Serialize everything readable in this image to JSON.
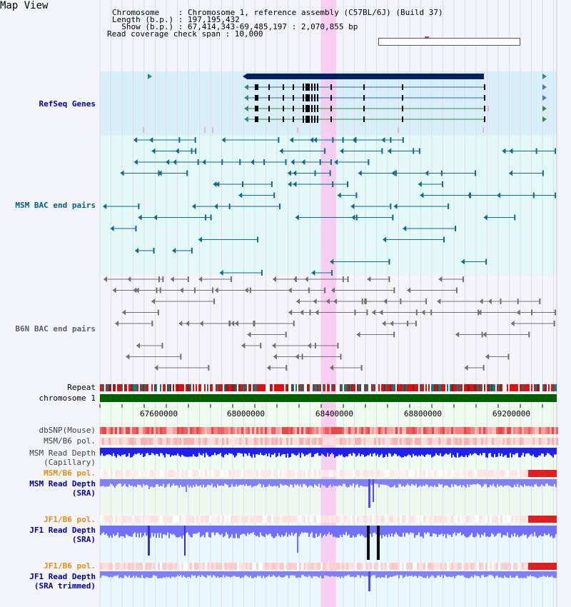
{
  "view": {
    "title": "Map View",
    "info_lines": [
      "Chromosome    : Chromosome 1, reference assembly (C57BL/6J) (Build 37)",
      "Length (b.p.) : 197,195,432",
      "  Show (b.p.) : 67,414,343-69,485,197 : 2,070,855 bp",
      "Read coverage check span : 10,000"
    ]
  },
  "tracks": {
    "refseq": "RefSeq Genes",
    "msm_bac": "MSM BAC end pairs",
    "b6n_bac": "B6N BAC end pairs",
    "repeat": "Repeat",
    "chromosome": "chromosome 1",
    "dbsnp": "dbSNP(Mouse)",
    "msm_b6_pol_1": "MSM/B6 pol.",
    "msm_read_depth_cap_1": "MSM Read Depth",
    "msm_read_depth_cap_2": "(Capillary)",
    "msm_b6_pol_2": "MSM/B6 pol.",
    "msm_read_depth_sra_1": "MSM Read Depth",
    "msm_read_depth_sra_2": "(SRA)",
    "jf1_b6_pol_1": "JF1/B6 pol.",
    "jf1_read_depth_sra_1": "JF1 Read Depth",
    "jf1_read_depth_sra_2": "(SRA)",
    "jf1_b6_pol_2": "JF1/B6 pol.",
    "jf1_read_depth_trim_1": "JF1 Read Depth",
    "jf1_read_depth_trim_2": "(SRA trimmed)"
  },
  "axis": {
    "ticks": [
      "67600000",
      "68000000",
      "68400000",
      "68800000",
      "69200000"
    ]
  },
  "colors": {
    "refseq_label": "#00009c",
    "msm_bac_label": "#006080",
    "b6n_bac_label": "#606060",
    "pol_label": "#e09000",
    "depth_label": "#00009c",
    "highlight": "#f8c8f0",
    "chromosome_bar": "#006000",
    "depth_bar": "#2020f0",
    "depth_light": "#8080f8"
  }
}
